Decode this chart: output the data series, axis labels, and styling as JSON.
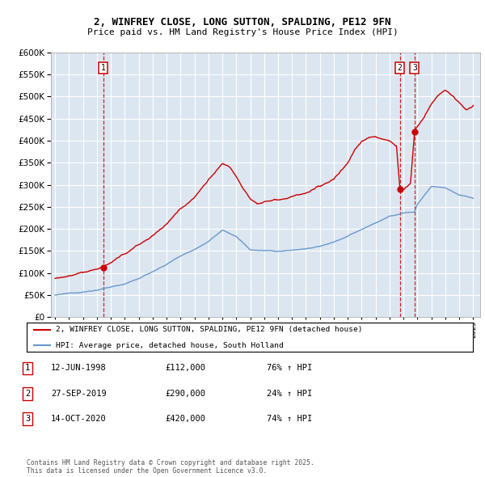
{
  "title1": "2, WINFREY CLOSE, LONG SUTTON, SPALDING, PE12 9FN",
  "title2": "Price paid vs. HM Land Registry's House Price Index (HPI)",
  "legend1": "2, WINFREY CLOSE, LONG SUTTON, SPALDING, PE12 9FN (detached house)",
  "legend2": "HPI: Average price, detached house, South Holland",
  "footnote": "Contains HM Land Registry data © Crown copyright and database right 2025.\nThis data is licensed under the Open Government Licence v3.0.",
  "sales": [
    {
      "label": "1",
      "year": 1998.45,
      "price": 112000
    },
    {
      "label": "2",
      "year": 2019.74,
      "price": 290000
    },
    {
      "label": "3",
      "year": 2020.79,
      "price": 420000
    }
  ],
  "sale_rows": [
    {
      "num": "1",
      "date": "12-JUN-1998",
      "price": "£112,000",
      "change": "76% ↑ HPI"
    },
    {
      "num": "2",
      "date": "27-SEP-2019",
      "price": "£290,000",
      "change": "24% ↑ HPI"
    },
    {
      "num": "3",
      "date": "14-OCT-2020",
      "price": "£420,000",
      "change": "74% ↑ HPI"
    }
  ],
  "ylim": [
    0,
    600000
  ],
  "xlim_start": 1994.7,
  "xlim_end": 2025.5,
  "red_color": "#cc0000",
  "blue_color": "#6699cc",
  "bg_color": "#dce6f1",
  "grid_color": "#ffffff"
}
